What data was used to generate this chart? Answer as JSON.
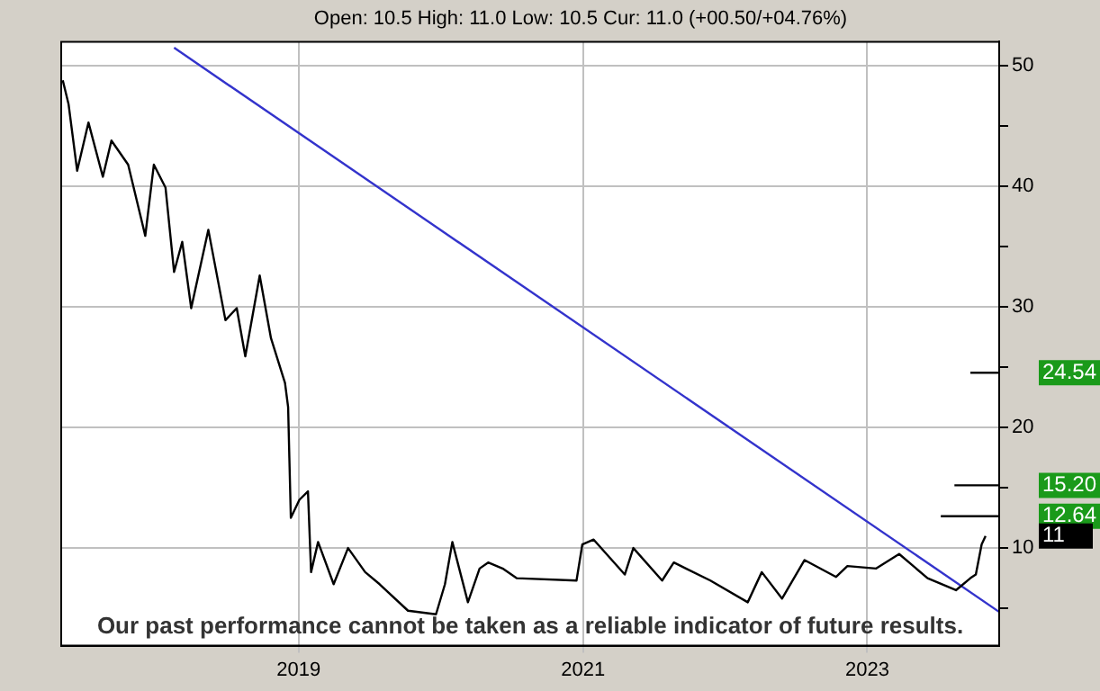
{
  "chart_data": {
    "type": "line",
    "subtitle": "Open: 10.5 High: 11.0 Low: 10.5 Cur: 11.0 (+00.50/+04.76%)",
    "annotations": [
      "Our past performance cannot be taken as a reliable indicator of future results.",
      {
        "text": "24.54",
        "x": "2023-12-06",
        "y": 24.54
      },
      {
        "text": "15.20",
        "x": "2023-12-06",
        "y": 15.2
      },
      {
        "text": "12.64",
        "x": "2023-12-06",
        "y": 12.64
      },
      {
        "text": "11",
        "x": "2023-11-01",
        "y": 11
      }
    ],
    "xlim": [
      "2017-05-01",
      "2023-12-06"
    ],
    "xticks": [
      "2019",
      "2021",
      "2023"
    ],
    "ylim": [
      1.9,
      52
    ],
    "yticks": [
      {
        "value": 5,
        "label": null
      },
      10,
      {
        "value": 15,
        "label": null
      },
      20,
      {
        "value": 25,
        "label": null
      },
      30,
      {
        "value": 35,
        "label": null
      },
      40,
      {
        "value": 45,
        "label": null
      },
      50
    ],
    "grid": true,
    "legend": false,
    "marker": "none",
    "line_style": "solid",
    "series": [
      {
        "color": "#000000",
        "x": [
          "2017-05-05",
          "2017-05-20",
          "2017-06-11",
          "2017-07-10",
          "2017-08-16",
          "2017-09-07",
          "2017-10-20",
          "2017-12-03",
          "2017-12-25",
          "2018-01-24",
          "2018-02-15",
          "2018-03-08",
          "2018-03-31",
          "2018-05-14",
          "2018-06-27",
          "2018-07-26",
          "2018-08-17",
          "2018-09-23",
          "2018-10-22",
          "2018-11-27",
          "2018-12-05",
          "2018-12-12",
          "2019-01-03",
          "2019-01-25",
          "2019-02-02",
          "2019-02-20",
          "2019-04-01",
          "2019-05-08",
          "2019-06-21",
          "2019-07-28",
          "2019-10-09",
          "2019-12-20",
          "2020-01-12",
          "2020-01-31",
          "2020-03-11",
          "2020-04-10",
          "2020-05-02",
          "2020-06-08",
          "2020-07-14",
          "2020-12-15",
          "2020-12-30",
          "2021-01-28",
          "2021-04-18",
          "2021-05-10",
          "2021-07-23",
          "2021-08-22",
          "2021-11-24",
          "2022-02-28",
          "2022-04-05",
          "2022-05-27",
          "2022-07-24",
          "2022-10-13",
          "2022-11-11",
          "2023-01-24",
          "2023-03-24",
          "2023-06-05",
          "2023-08-17",
          "2023-09-23",
          "2023-10-07",
          "2023-10-22",
          "2023-11-01"
        ],
        "values": [
          48.8,
          46.8,
          41.3,
          45.3,
          40.8,
          43.8,
          41.8,
          35.9,
          41.8,
          39.9,
          32.9,
          35.4,
          29.9,
          36.4,
          28.9,
          29.9,
          25.9,
          32.6,
          27.4,
          23.7,
          21.7,
          12.5,
          14.0,
          14.7,
          8.0,
          10.5,
          7.0,
          10,
          8,
          7.0,
          4.8,
          4.5,
          7.0,
          10.5,
          5.5,
          8.3,
          8.8,
          8.3,
          7.5,
          7.3,
          10.3,
          10.7,
          7.8,
          10,
          7.3,
          8.8,
          7.3,
          5.5,
          8,
          5.8,
          9.0,
          7.6,
          8.5,
          8.3,
          9.5,
          7.5,
          6.5,
          7.5,
          7.8,
          10.3,
          11.0
        ]
      },
      {
        "color": "#3333cc",
        "x": [
          "2018-02-15",
          "2023-12-06"
        ],
        "values": [
          51.5,
          4.7
        ]
      },
      {
        "color": "#000000",
        "x": [
          "2023-09-23",
          "2023-12-06"
        ],
        "values": [
          24.54,
          24.54
        ]
      },
      {
        "color": "#000000",
        "x": [
          "2023-08-13",
          "2023-12-06"
        ],
        "values": [
          15.2,
          15.2
        ]
      },
      {
        "color": "#000000",
        "x": [
          "2023-07-09",
          "2023-12-06"
        ],
        "values": [
          12.64,
          12.64
        ]
      }
    ]
  }
}
